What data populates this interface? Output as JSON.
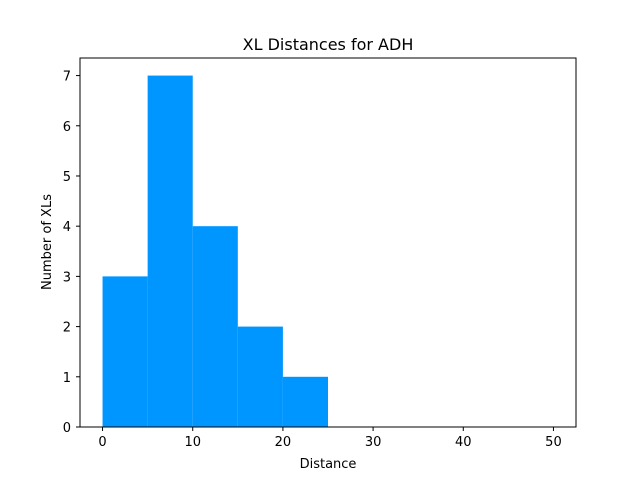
{
  "chart_data": {
    "type": "bar",
    "title": "XL Distances for ADH",
    "xlabel": "Distance",
    "ylabel": "Number of XLs",
    "bins": [
      {
        "start": 0,
        "end": 5,
        "count": 3
      },
      {
        "start": 5,
        "end": 10,
        "count": 7
      },
      {
        "start": 10,
        "end": 15,
        "count": 4
      },
      {
        "start": 15,
        "end": 20,
        "count": 2
      },
      {
        "start": 20,
        "end": 25,
        "count": 1
      },
      {
        "start": 25,
        "end": 30,
        "count": 0
      },
      {
        "start": 30,
        "end": 35,
        "count": 0
      },
      {
        "start": 35,
        "end": 40,
        "count": 0
      },
      {
        "start": 40,
        "end": 45,
        "count": 0
      },
      {
        "start": 45,
        "end": 50,
        "count": 0
      }
    ],
    "xlim": [
      -2.5,
      52.5
    ],
    "ylim": [
      0,
      7.35
    ],
    "xticks": [
      0,
      10,
      20,
      30,
      40,
      50
    ],
    "yticks": [
      0,
      1,
      2,
      3,
      4,
      5,
      6,
      7
    ],
    "grid": false,
    "bar_color": "#0096FF"
  }
}
